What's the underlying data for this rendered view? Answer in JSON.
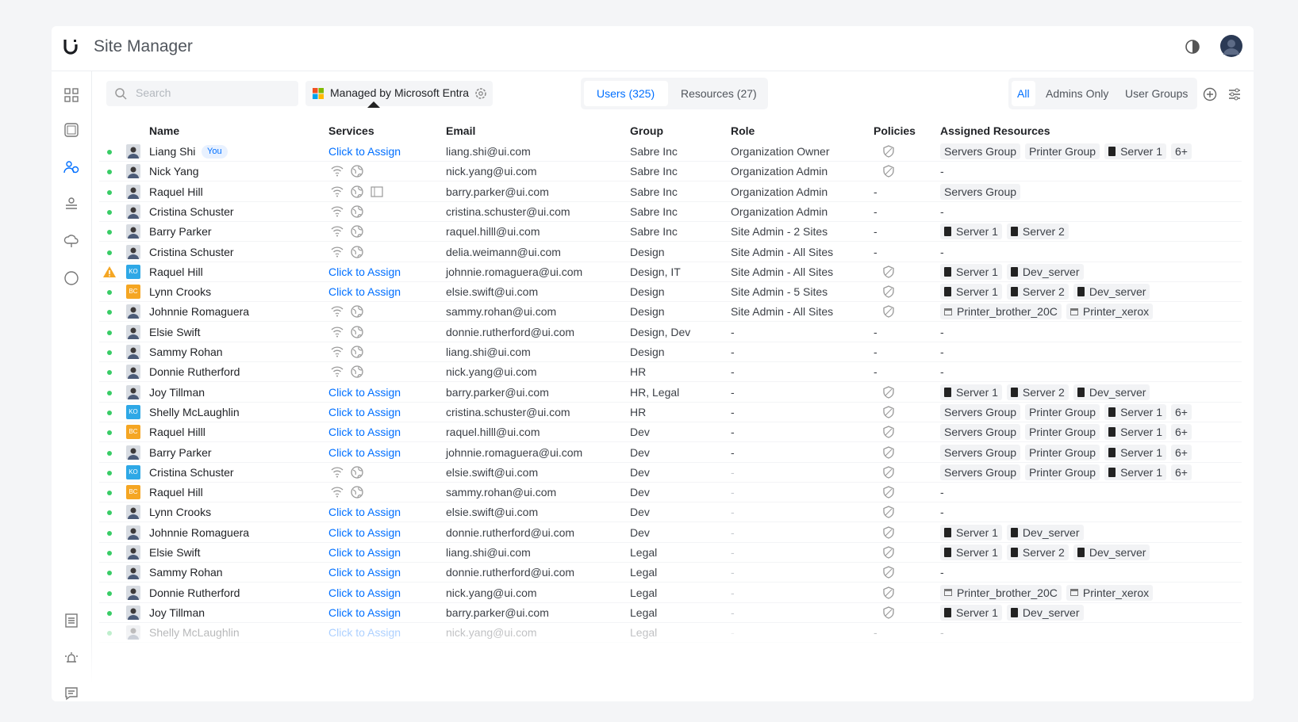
{
  "header": {
    "title": "Site Manager"
  },
  "toolbar": {
    "search": "Search",
    "managed": "Managed by Microsoft Entra",
    "tabs": [
      "Users (325)",
      "Resources (27)"
    ],
    "filters": [
      "All",
      "Admins Only",
      "User Groups"
    ]
  },
  "table": {
    "columns": [
      "Name",
      "Services",
      "Email",
      "Group",
      "Role",
      "Policies",
      "Assigned Resources"
    ],
    "rows": [
      {
        "status": "active",
        "name": "Liang Shi",
        "badge": "You",
        "services": "Click to Assign",
        "email": "liang.shi@ui.com",
        "group": "Sabre Inc",
        "role": "Organization Owner",
        "resources": [
          "Servers Group",
          "Printer Group",
          "Server 1",
          "6+"
        ]
      },
      {
        "status": "active",
        "name": "Nick Yang",
        "email": "nick.yang@ui.com",
        "group": "Sabre Inc",
        "role": "Organization Admin",
        "resources": "-"
      },
      {
        "status": "active",
        "name": "Raquel Hill",
        "email": "barry.parker@ui.com",
        "group": "Sabre Inc",
        "role": "Organization Admin",
        "policies": "-",
        "resources": [
          "Servers Group"
        ]
      },
      {
        "status": "active",
        "name": "Cristina Schuster",
        "email": "cristina.schuster@ui.com",
        "group": "Sabre Inc",
        "role": "Organization Admin",
        "policies": "-",
        "resources": "-"
      },
      {
        "status": "active",
        "name": "Barry Parker",
        "email": "raquel.hilll@ui.com",
        "group": "Sabre Inc",
        "role": "Site Admin - 2 Sites",
        "policies": "-",
        "resources": [
          "Server 1",
          "Server 2"
        ]
      },
      {
        "status": "active",
        "name": "Cristina Schuster",
        "email": "delia.weimann@ui.com",
        "group": "Design",
        "role": "Site Admin - All Sites",
        "policies": "-",
        "resources": "-"
      },
      {
        "status": "warning",
        "avatar": "KO",
        "name": "Raquel Hill",
        "services": "Click to Assign",
        "email": "johnnie.romaguera@ui.com",
        "group": "Design, IT",
        "role": "Site Admin - All Sites",
        "resources": [
          "Server 1",
          "Dev_server"
        ]
      },
      {
        "status": "active",
        "avatar": "BC",
        "name": "Lynn Crooks",
        "services": "Click to Assign",
        "email": "elsie.swift@ui.com",
        "group": "Design",
        "role": "Site Admin - 5 Sites",
        "resources": [
          "Server 1",
          "Server 2",
          "Dev_server"
        ]
      },
      {
        "status": "active",
        "name": "Johnnie Romaguera",
        "email": "sammy.rohan@ui.com",
        "group": "Design",
        "role": "Site Admin - All Sites",
        "resources": [
          "Printer_brother_20C",
          "Printer_xerox"
        ]
      },
      {
        "status": "active",
        "name": "Elsie Swift",
        "email": "donnie.rutherford@ui.com",
        "group": "Design, Dev",
        "role": "-",
        "policies": "-",
        "resources": "-"
      },
      {
        "status": "active",
        "name": "Sammy Rohan",
        "email": "liang.shi@ui.com",
        "group": "Design",
        "role": "-",
        "policies": "-",
        "resources": "-"
      },
      {
        "status": "active",
        "name": "Donnie Rutherford",
        "email": "nick.yang@ui.com",
        "group": "HR",
        "role": "-",
        "policies": "-",
        "resources": "-"
      },
      {
        "status": "active",
        "name": "Joy Tillman",
        "services": "Click to Assign",
        "email": "barry.parker@ui.com",
        "group": "HR, Legal",
        "role": "-",
        "resources": [
          "Server 1",
          "Server 2",
          "Dev_server"
        ]
      },
      {
        "status": "active",
        "avatar": "KO",
        "name": "Shelly McLaughlin",
        "services": "Click to Assign",
        "email": "cristina.schuster@ui.com",
        "group": "HR",
        "role": "-",
        "resources": [
          "Servers Group",
          "Printer Group",
          "Server 1",
          "6+"
        ]
      },
      {
        "status": "active",
        "avatar": "BC",
        "name": "Raquel Hilll",
        "services": "Click to Assign",
        "email": "raquel.hilll@ui.com",
        "group": "Dev",
        "role": "-",
        "resources": [
          "Servers Group",
          "Printer Group",
          "Server 1",
          "6+"
        ]
      },
      {
        "status": "active",
        "name": "Barry Parker",
        "services": "Click to Assign",
        "email": "johnnie.romaguera@ui.com",
        "group": "Dev",
        "role": "-",
        "resources": [
          "Servers Group",
          "Printer Group",
          "Server 1",
          "6+"
        ]
      },
      {
        "status": "active",
        "avatar": "KO",
        "name": "Cristina Schuster",
        "email": "elsie.swift@ui.com",
        "group": "Dev",
        "role": "-",
        "resources": [
          "Servers Group",
          "Printer Group",
          "Server 1",
          "6+"
        ]
      },
      {
        "status": "active",
        "avatar": "BC",
        "name": "Raquel Hill",
        "email": "sammy.rohan@ui.com",
        "group": "Dev",
        "role": "-",
        "resources": "-"
      },
      {
        "status": "active",
        "name": "Lynn Crooks",
        "services": "Click to Assign",
        "email": "elsie.swift@ui.com",
        "group": "Dev",
        "role": "-",
        "resources": "-"
      },
      {
        "status": "active",
        "name": "Johnnie Romaguera",
        "services": "Click to Assign",
        "email": "donnie.rutherford@ui.com",
        "group": "Dev",
        "role": "-",
        "resources": [
          "Server 1",
          "Dev_server"
        ]
      },
      {
        "status": "active",
        "name": "Elsie Swift",
        "services": "Click to Assign",
        "email": "liang.shi@ui.com",
        "group": "Legal",
        "role": "-",
        "resources": [
          "Server 1",
          "Server 2",
          "Dev_server"
        ]
      },
      {
        "status": "active",
        "name": "Sammy Rohan",
        "services": "Click to Assign",
        "email": "donnie.rutherford@ui.com",
        "group": "Legal",
        "role": "-",
        "resources": "-"
      },
      {
        "status": "active",
        "name": "Donnie Rutherford",
        "services": "Click to Assign",
        "email": "nick.yang@ui.com",
        "group": "Legal",
        "role": "-",
        "resources": [
          "Printer_brother_20C",
          "Printer_xerox"
        ]
      },
      {
        "status": "active",
        "name": "Joy Tillman",
        "services": "Click to Assign",
        "email": "barry.parker@ui.com",
        "group": "Legal",
        "role": "-",
        "resources": [
          "Server 1",
          "Dev_server"
        ]
      },
      {
        "status": "active",
        "name": "Shelly McLaughlin",
        "services": "Click to Assign",
        "email": "nick.yang@ui.com",
        "group": "Legal",
        "role": "-",
        "policies": "-",
        "resources": "-"
      }
    ]
  }
}
